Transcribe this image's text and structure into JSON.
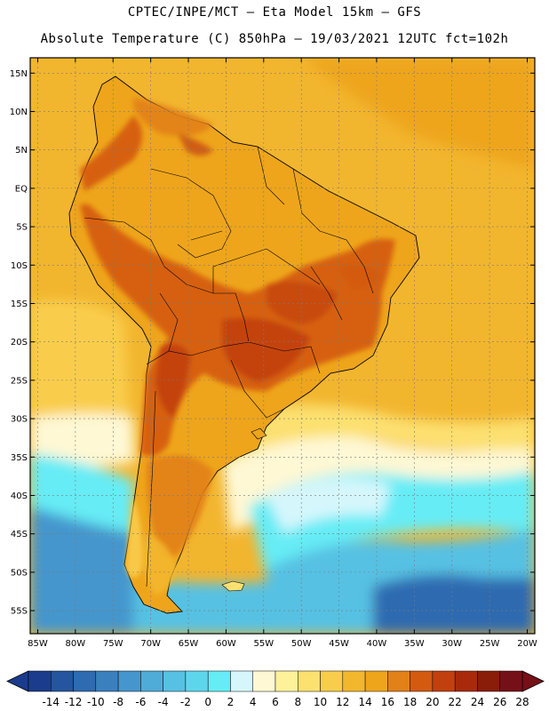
{
  "header": {
    "line1": "CPTEC/INPE/MCT –  Eta Model 15km – GFS",
    "line2": "Absolute Temperature (C) 850hPa – 19/03/2021 12UTC fct=102h"
  },
  "map": {
    "lon_range": [
      -86,
      -19
    ],
    "lat_range": [
      -58,
      17
    ],
    "lat_ticks": [
      15,
      10,
      5,
      0,
      -5,
      -10,
      -15,
      -20,
      -25,
      -30,
      -35,
      -40,
      -45,
      -50,
      -55
    ],
    "lat_labels": [
      "15N",
      "10N",
      "5N",
      "EQ",
      "5S",
      "10S",
      "15S",
      "20S",
      "25S",
      "30S",
      "35S",
      "40S",
      "45S",
      "50S",
      "55S"
    ],
    "lon_ticks": [
      -85,
      -80,
      -75,
      -70,
      -65,
      -60,
      -55,
      -50,
      -45,
      -40,
      -35,
      -30,
      -25,
      -20
    ],
    "lon_labels": [
      "85W",
      "80W",
      "75W",
      "70W",
      "65W",
      "60W",
      "55W",
      "50W",
      "45W",
      "40W",
      "35W",
      "30W",
      "25W",
      "20W"
    ],
    "gridlines": true,
    "ocean_color": "#f2b52e",
    "land_base_color": "#eea51b"
  },
  "colorbar": {
    "labels": [
      "-14",
      "-12",
      "-10",
      "-8",
      "-6",
      "-4",
      "-2",
      "0",
      "2",
      "4",
      "6",
      "8",
      "10",
      "12",
      "14",
      "16",
      "18",
      "20",
      "22",
      "24",
      "26",
      "28"
    ],
    "colors": [
      "#1b3c8c",
      "#24559e",
      "#2e6bb0",
      "#3a80bf",
      "#4596cc",
      "#4fabd8",
      "#56c1e3",
      "#5dd6ec",
      "#66ecf5",
      "#d5f7fc",
      "#fef8d4",
      "#fdf29a",
      "#fce070",
      "#f9cd4c",
      "#f3b72d",
      "#eea51b",
      "#e28118",
      "#d45a10",
      "#c2400d",
      "#a82a0a",
      "#8a1d0a",
      "#751018"
    ],
    "under_color": "#1b3c8c",
    "over_color": "#751018"
  }
}
